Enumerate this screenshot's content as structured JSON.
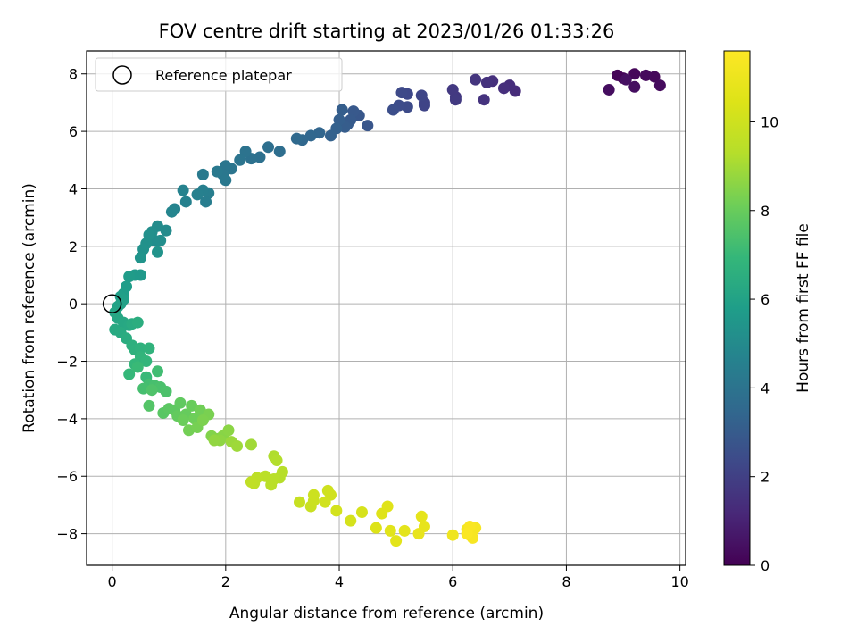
{
  "chart_data": {
    "type": "scatter",
    "title": "FOV centre drift starting at 2023/01/26 01:33:26",
    "xlabel": "Angular distance from reference (arcmin)",
    "ylabel": "Rotation from reference (arcmin)",
    "xlim": [
      -0.45,
      10.1
    ],
    "ylim": [
      -9.1,
      8.8
    ],
    "xticks": [
      "0",
      "2",
      "4",
      "6",
      "8",
      "10"
    ],
    "yticks": [
      "−8",
      "−6",
      "−4",
      "−2",
      "0",
      "2",
      "4",
      "6",
      "8"
    ],
    "grid": true,
    "legend": {
      "placement": "top-left",
      "entries": [
        "Reference platepar"
      ]
    },
    "reference_point": {
      "x": 0,
      "y": 0
    },
    "colorbar": {
      "label": "Hours from first FF file",
      "min": 0,
      "max": 11.6,
      "ticks": [
        "0",
        "2",
        "4",
        "6",
        "8",
        "10"
      ],
      "colormap": "viridis"
    },
    "points": [
      [
        8.9,
        7.95,
        0.05
      ],
      [
        9.0,
        7.85,
        0.1
      ],
      [
        9.2,
        8.0,
        0.15
      ],
      [
        9.55,
        7.9,
        0.2
      ],
      [
        9.4,
        7.95,
        0.25
      ],
      [
        9.65,
        7.6,
        0.3
      ],
      [
        8.75,
        7.45,
        0.35
      ],
      [
        9.2,
        7.55,
        0.4
      ],
      [
        9.05,
        7.8,
        0.45
      ],
      [
        7.1,
        7.4,
        1.3
      ],
      [
        7.0,
        7.6,
        1.35
      ],
      [
        6.9,
        7.5,
        1.4
      ],
      [
        6.7,
        7.75,
        1.45
      ],
      [
        6.6,
        7.7,
        1.5
      ],
      [
        6.55,
        7.1,
        1.55
      ],
      [
        6.4,
        7.8,
        1.6
      ],
      [
        6.05,
        7.2,
        1.7
      ],
      [
        6.0,
        7.45,
        1.75
      ],
      [
        6.05,
        7.1,
        1.8
      ],
      [
        5.5,
        7.0,
        2.1
      ],
      [
        5.5,
        6.9,
        2.15
      ],
      [
        5.45,
        7.25,
        2.2
      ],
      [
        5.2,
        7.3,
        2.3
      ],
      [
        5.1,
        7.35,
        2.35
      ],
      [
        5.2,
        6.85,
        2.4
      ],
      [
        5.05,
        6.9,
        2.45
      ],
      [
        4.95,
        6.75,
        2.5
      ],
      [
        4.5,
        6.2,
        2.8
      ],
      [
        4.35,
        6.55,
        2.85
      ],
      [
        4.25,
        6.7,
        2.9
      ],
      [
        4.2,
        6.4,
        2.95
      ],
      [
        4.15,
        6.25,
        3.0
      ],
      [
        4.1,
        6.15,
        3.05
      ],
      [
        4.05,
        6.75,
        3.1
      ],
      [
        4.0,
        6.4,
        3.15
      ],
      [
        3.95,
        6.1,
        3.2
      ],
      [
        3.85,
        5.85,
        3.25
      ],
      [
        3.65,
        5.95,
        3.4
      ],
      [
        3.5,
        5.85,
        3.45
      ],
      [
        3.35,
        5.7,
        3.5
      ],
      [
        3.25,
        5.75,
        3.55
      ],
      [
        2.95,
        5.3,
        3.75
      ],
      [
        2.75,
        5.45,
        3.8
      ],
      [
        2.6,
        5.1,
        3.85
      ],
      [
        2.45,
        5.05,
        3.9
      ],
      [
        2.35,
        5.3,
        3.95
      ],
      [
        2.25,
        5.0,
        4.0
      ],
      [
        2.1,
        4.7,
        4.05
      ],
      [
        2.0,
        4.8,
        4.1
      ],
      [
        1.95,
        4.5,
        4.15
      ],
      [
        2.0,
        4.3,
        4.2
      ],
      [
        1.85,
        4.6,
        4.25
      ],
      [
        1.6,
        4.5,
        4.3
      ],
      [
        1.7,
        3.85,
        4.45
      ],
      [
        1.6,
        3.95,
        4.5
      ],
      [
        1.5,
        3.8,
        4.55
      ],
      [
        1.3,
        3.55,
        4.6
      ],
      [
        1.25,
        3.95,
        4.65
      ],
      [
        1.1,
        3.3,
        4.7
      ],
      [
        1.05,
        3.2,
        4.75
      ],
      [
        1.65,
        3.55,
        4.4
      ],
      [
        0.95,
        2.55,
        5.0
      ],
      [
        0.8,
        2.7,
        5.05
      ],
      [
        0.75,
        2.2,
        5.1
      ],
      [
        0.7,
        2.5,
        5.15
      ],
      [
        0.65,
        2.4,
        5.2
      ],
      [
        0.6,
        2.1,
        5.25
      ],
      [
        0.55,
        1.9,
        5.3
      ],
      [
        0.8,
        1.8,
        5.35
      ],
      [
        0.5,
        1.6,
        5.4
      ],
      [
        0.85,
        2.2,
        5.12
      ],
      [
        0.5,
        1.0,
        5.6
      ],
      [
        0.4,
        1.0,
        5.65
      ],
      [
        0.3,
        0.95,
        5.7
      ],
      [
        0.25,
        0.6,
        5.75
      ],
      [
        0.2,
        0.35,
        5.8
      ],
      [
        0.15,
        0.25,
        5.85
      ],
      [
        0.2,
        0.15,
        5.9
      ],
      [
        0.15,
        0.0,
        5.95
      ],
      [
        0.1,
        -0.1,
        6.0
      ],
      [
        0.05,
        -0.3,
        6.1
      ],
      [
        0.1,
        -0.5,
        6.15
      ],
      [
        0.2,
        -0.65,
        6.2
      ],
      [
        0.3,
        -0.75,
        6.25
      ],
      [
        0.05,
        -0.9,
        6.3
      ],
      [
        0.15,
        -1.0,
        6.35
      ],
      [
        0.35,
        -0.7,
        6.4
      ],
      [
        0.25,
        -1.2,
        6.45
      ],
      [
        0.45,
        -0.65,
        6.5
      ],
      [
        0.35,
        -1.45,
        6.6
      ],
      [
        0.4,
        -1.6,
        6.65
      ],
      [
        0.5,
        -1.55,
        6.7
      ],
      [
        0.65,
        -1.55,
        6.75
      ],
      [
        0.5,
        -1.85,
        6.8
      ],
      [
        0.6,
        -2.0,
        6.85
      ],
      [
        0.4,
        -2.1,
        6.9
      ],
      [
        0.3,
        -2.45,
        6.95
      ],
      [
        0.6,
        -2.55,
        7.0
      ],
      [
        0.45,
        -2.2,
        7.05
      ],
      [
        0.8,
        -2.35,
        7.2
      ],
      [
        0.65,
        -2.8,
        7.25
      ],
      [
        0.55,
        -2.95,
        7.3
      ],
      [
        0.75,
        -2.85,
        7.35
      ],
      [
        0.85,
        -2.9,
        7.4
      ],
      [
        0.95,
        -3.05,
        7.45
      ],
      [
        0.7,
        -3.0,
        7.5
      ],
      [
        0.65,
        -3.55,
        7.6
      ],
      [
        0.9,
        -3.8,
        7.7
      ],
      [
        1.0,
        -3.65,
        7.75
      ],
      [
        1.1,
        -3.7,
        7.8
      ],
      [
        1.2,
        -3.45,
        7.85
      ],
      [
        1.15,
        -3.9,
        7.9
      ],
      [
        1.3,
        -3.85,
        7.95
      ],
      [
        1.4,
        -3.55,
        8.0
      ],
      [
        1.25,
        -4.05,
        8.05
      ],
      [
        1.45,
        -4.0,
        8.1
      ],
      [
        1.55,
        -3.7,
        8.15
      ],
      [
        1.35,
        -4.4,
        8.2
      ],
      [
        1.5,
        -4.3,
        8.25
      ],
      [
        1.7,
        -3.85,
        8.3
      ],
      [
        1.6,
        -4.05,
        8.35
      ],
      [
        1.75,
        -4.6,
        8.45
      ],
      [
        1.85,
        -4.7,
        8.5
      ],
      [
        1.95,
        -4.6,
        8.55
      ],
      [
        2.05,
        -4.4,
        8.6
      ],
      [
        1.9,
        -4.75,
        8.65
      ],
      [
        1.8,
        -4.75,
        8.7
      ],
      [
        2.1,
        -4.8,
        8.85
      ],
      [
        2.2,
        -4.95,
        8.9
      ],
      [
        2.45,
        -4.9,
        8.95
      ],
      [
        2.85,
        -5.3,
        9.2
      ],
      [
        2.9,
        -5.45,
        9.25
      ],
      [
        2.95,
        -6.05,
        9.3
      ],
      [
        3.0,
        -5.85,
        9.35
      ],
      [
        2.85,
        -6.1,
        9.4
      ],
      [
        2.7,
        -6.0,
        9.45
      ],
      [
        2.55,
        -6.05,
        9.5
      ],
      [
        2.5,
        -6.25,
        9.55
      ],
      [
        2.45,
        -6.2,
        9.6
      ],
      [
        2.8,
        -6.3,
        9.42
      ],
      [
        3.3,
        -6.9,
        9.8
      ],
      [
        3.5,
        -7.05,
        9.85
      ],
      [
        3.55,
        -6.85,
        9.9
      ],
      [
        3.55,
        -6.65,
        9.95
      ],
      [
        3.8,
        -6.5,
        10.0
      ],
      [
        3.85,
        -6.65,
        10.05
      ],
      [
        3.75,
        -6.9,
        10.1
      ],
      [
        3.95,
        -7.2,
        10.15
      ],
      [
        4.2,
        -7.55,
        10.2
      ],
      [
        4.4,
        -7.25,
        10.25
      ],
      [
        4.65,
        -7.8,
        10.45
      ],
      [
        4.75,
        -7.3,
        10.5
      ],
      [
        4.85,
        -7.05,
        10.55
      ],
      [
        4.9,
        -7.9,
        10.6
      ],
      [
        5.0,
        -8.25,
        10.65
      ],
      [
        5.15,
        -7.9,
        10.7
      ],
      [
        5.45,
        -7.4,
        10.75
      ],
      [
        5.5,
        -7.75,
        10.8
      ],
      [
        5.4,
        -8.0,
        10.85
      ],
      [
        6.0,
        -8.05,
        11.1
      ],
      [
        6.25,
        -7.85,
        11.2
      ],
      [
        6.3,
        -8.05,
        11.25
      ],
      [
        6.35,
        -7.9,
        11.3
      ],
      [
        6.4,
        -7.8,
        11.35
      ],
      [
        6.35,
        -8.15,
        11.4
      ],
      [
        6.3,
        -7.75,
        11.45
      ],
      [
        6.25,
        -8.0,
        11.5
      ]
    ]
  }
}
